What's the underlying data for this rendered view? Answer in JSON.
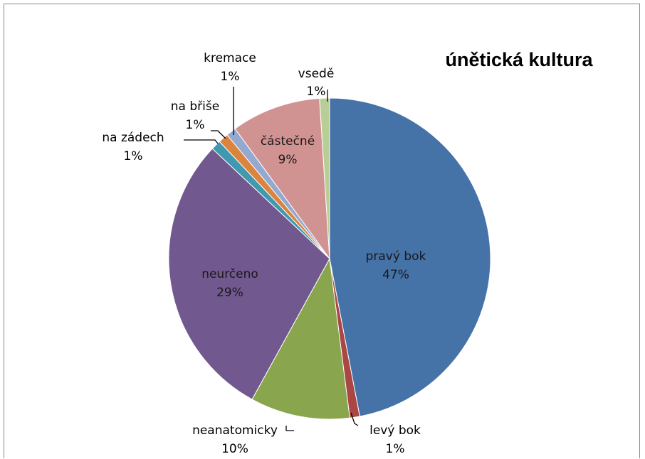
{
  "chart_data": {
    "type": "pie",
    "title": "únětická kultura",
    "slices": [
      {
        "label": "pravý bok",
        "value": 47,
        "pct": "47%",
        "color": "#4572A7"
      },
      {
        "label": "levý bok",
        "value": 1,
        "pct": "1%",
        "color": "#AA4643"
      },
      {
        "label": "neanatomicky",
        "value": 10,
        "pct": "10%",
        "color": "#89A54E"
      },
      {
        "label": "neurčeno",
        "value": 29,
        "pct": "29%",
        "color": "#71588F"
      },
      {
        "label": "na zádech",
        "value": 1,
        "pct": "1%",
        "color": "#4198AF"
      },
      {
        "label": "na břiše",
        "value": 1,
        "pct": "1%",
        "color": "#DB843D"
      },
      {
        "label": "kremace",
        "value": 1,
        "pct": "1%",
        "color": "#93A9CF"
      },
      {
        "label": "částečné",
        "value": 9,
        "pct": "9%",
        "color": "#D19392"
      },
      {
        "label": "vsedě",
        "value": 1,
        "pct": "1%",
        "color": "#B9CD96"
      }
    ]
  }
}
